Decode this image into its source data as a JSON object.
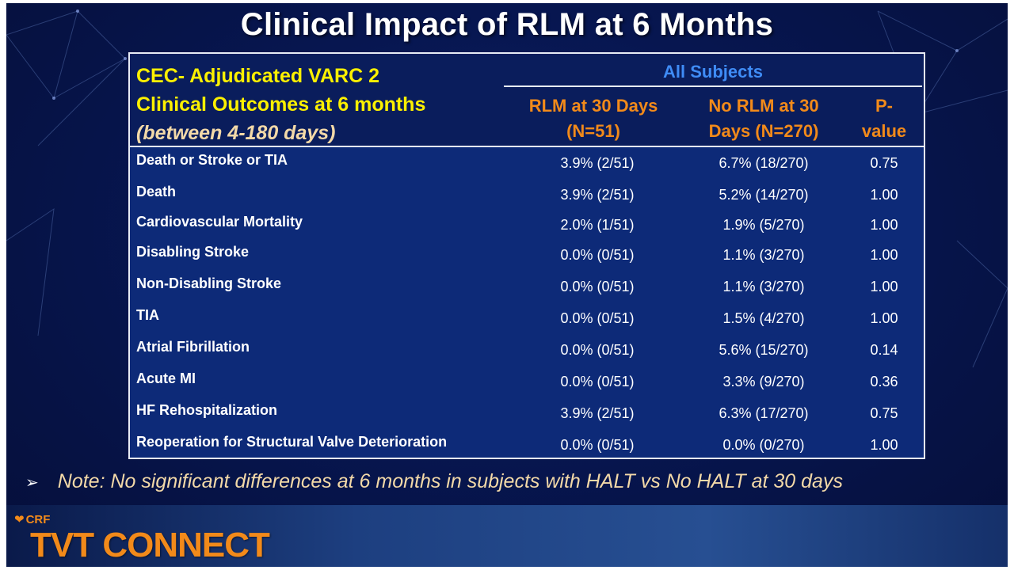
{
  "slide": {
    "title": "Clinical Impact of RLM at 6 Months",
    "table": {
      "header_title_line1": "CEC- Adjudicated VARC 2",
      "header_title_line2": "Clinical Outcomes at 6 months",
      "header_title_line3": "(between 4-180 days)",
      "group_header": "All Subjects",
      "col_rlm_line1": "RLM at 30 Days",
      "col_rlm_line2": "(N=51)",
      "col_no_line1": "No RLM at 30",
      "col_no_line2": "Days (N=270)",
      "col_p_line1": "P-",
      "col_p_line2": "value",
      "rows": [
        {
          "name": "Death or Stroke or TIA",
          "rlm": "3.9% (2/51)",
          "no": "6.7% (18/270)",
          "p": "0.75"
        },
        {
          "name": "Death",
          "rlm": "3.9% (2/51)",
          "no": "5.2% (14/270)",
          "p": "1.00"
        },
        {
          "name": "Cardiovascular Mortality",
          "rlm": "2.0% (1/51)",
          "no": "1.9% (5/270)",
          "p": "1.00"
        },
        {
          "name": "Disabling Stroke",
          "rlm": "0.0% (0/51)",
          "no": "1.1% (3/270)",
          "p": "1.00"
        },
        {
          "name": "Non-Disabling Stroke",
          "rlm": "0.0% (0/51)",
          "no": "1.1% (3/270)",
          "p": "1.00"
        },
        {
          "name": "TIA",
          "rlm": "0.0% (0/51)",
          "no": "1.5% (4/270)",
          "p": "1.00"
        },
        {
          "name": "Atrial Fibrillation",
          "rlm": "0.0% (0/51)",
          "no": "5.6% (15/270)",
          "p": "0.14"
        },
        {
          "name": "Acute MI",
          "rlm": "0.0% (0/51)",
          "no": "3.3% (9/270)",
          "p": "0.36"
        },
        {
          "name": "HF Rehospitalization",
          "rlm": "3.9% (2/51)",
          "no": "6.3% (17/270)",
          "p": "0.75"
        },
        {
          "name": "Reoperation for Structural Valve Deterioration",
          "rlm": "0.0% (0/51)",
          "no": "0.0% (0/270)",
          "p": "1.00"
        }
      ]
    },
    "note_arrow": "➢",
    "note": "Note: No significant differences at 6 months in subjects with HALT vs No HALT at 30 days"
  },
  "branding": {
    "crf_label": "CRF",
    "logo_text": "TVT CONNECT"
  },
  "colors": {
    "background": "#071650",
    "table_fill": "#0d2a78",
    "header_title": "#fcf000",
    "column_header": "#f28a1a",
    "group_header": "#3f8cf6",
    "note_text": "#f3d9a8",
    "logo": "#f28a1a"
  }
}
